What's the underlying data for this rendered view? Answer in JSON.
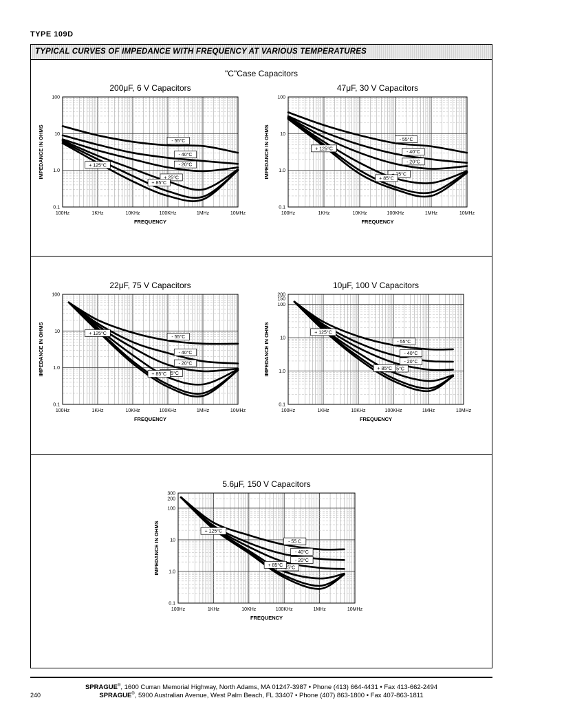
{
  "header": {
    "type_label": "TYPE 109D"
  },
  "banner": {
    "title": "TYPICAL CURVES OF IMPEDANCE WITH FREQUENCY AT VARIOUS TEMPERATURES"
  },
  "case_title": "\"C\"Case Capacitors",
  "footer": {
    "line1_brand": "SPRAGUE",
    "line1_mark": "®",
    "line1_text": ", 1600 Curran Memorial Highway, North Adams, MA 01247-3987  •  Phone (413) 664-4431  •  Fax 413-662-2494",
    "line2_brand": "SPRAGUE",
    "line2_mark": "®",
    "line2_text": ", 5900 Australian Avenue, West Palm Beach, FL 33407  •  Phone (407) 863-1800  •  Fax 407-863-1811",
    "page_number": "240"
  },
  "chart_data": [
    {
      "type": "line",
      "title": "200μF, 6 V Capacitors",
      "xlabel": "FREQUENCY",
      "ylabel": "IMPEDANCE IN OHMS",
      "x_scale": "log",
      "y_scale": "log",
      "xlim": [
        100,
        10000000
      ],
      "ylim": [
        0.1,
        100
      ],
      "x_ticks": [
        "100Hz",
        "1KHz",
        "10KHz",
        "100KHz",
        "1MHz",
        "10MHz"
      ],
      "y_ticks": [
        "100",
        "10",
        "1.0",
        "0.1"
      ],
      "series": [
        {
          "name": "- 55°C",
          "x": [
            100,
            1000,
            10000,
            100000,
            1000000,
            10000000
          ],
          "y": [
            16,
            9,
            6,
            4.8,
            4.6,
            3
          ]
        },
        {
          "name": "- 40°C",
          "x": [
            100,
            1000,
            10000,
            100000,
            1000000,
            10000000
          ],
          "y": [
            9,
            5,
            3,
            2.2,
            1.8,
            1.5
          ]
        },
        {
          "name": "- 20°C",
          "x": [
            100,
            1000,
            10000,
            100000,
            1000000,
            10000000
          ],
          "y": [
            7,
            3.5,
            2,
            1.2,
            0.95,
            1.2
          ]
        },
        {
          "name": "+ 25°C",
          "x": [
            100,
            1000,
            10000,
            100000,
            1000000,
            10000000
          ],
          "y": [
            6.5,
            2.5,
            1.1,
            0.5,
            0.3,
            1.05
          ]
        },
        {
          "name": "+ 85°C",
          "x": [
            100,
            1000,
            10000,
            100000,
            1000000,
            10000000
          ],
          "y": [
            6,
            2,
            0.7,
            0.27,
            0.19,
            1.0
          ]
        },
        {
          "name": "+ 125°C",
          "x": [
            100,
            1000,
            10000,
            100000,
            1000000,
            10000000
          ],
          "y": [
            5.5,
            1.6,
            0.5,
            0.2,
            0.16,
            1.0
          ]
        }
      ]
    },
    {
      "type": "line",
      "title": "47μF, 30 V Capacitors",
      "xlabel": "FREQUENCY",
      "ylabel": "IMPEDANCE IN OHMS",
      "x_scale": "log",
      "y_scale": "log",
      "xlim": [
        100,
        10000000
      ],
      "ylim": [
        0.1,
        100
      ],
      "x_ticks": [
        "100Hz",
        "1KHz",
        "10KHz",
        "100KHz",
        "1MHz",
        "10MHz"
      ],
      "y_ticks": [
        "100",
        "10",
        "1.0",
        "0.1"
      ],
      "series": [
        {
          "name": "- 55°C",
          "x": [
            100,
            1000,
            10000,
            100000,
            1000000,
            10000000
          ],
          "y": [
            38,
            17,
            9,
            5.5,
            4.5,
            3
          ]
        },
        {
          "name": "- 40°C",
          "x": [
            100,
            1000,
            10000,
            100000,
            1000000,
            10000000
          ],
          "y": [
            30,
            11,
            5,
            2.8,
            2.0,
            1.6
          ]
        },
        {
          "name": "- 20°C",
          "x": [
            100,
            1000,
            10000,
            100000,
            1000000,
            10000000
          ],
          "y": [
            28,
            8,
            3,
            1.5,
            1.1,
            1.3
          ]
        },
        {
          "name": "+ 25°C",
          "x": [
            100,
            1000,
            10000,
            100000,
            1000000,
            10000000
          ],
          "y": [
            27,
            6,
            1.6,
            0.6,
            0.45,
            0.95
          ]
        },
        {
          "name": "+ 85°C",
          "x": [
            100,
            1000,
            10000,
            100000,
            1000000,
            10000000
          ],
          "y": [
            26,
            5,
            1.0,
            0.35,
            0.25,
            0.9
          ]
        },
        {
          "name": "+ 125°C",
          "x": [
            100,
            1000,
            10000,
            100000,
            1000000,
            10000000
          ],
          "y": [
            25,
            4.5,
            0.8,
            0.3,
            0.2,
            0.85
          ]
        }
      ]
    },
    {
      "type": "line",
      "title": "22μF, 75 V Capacitors",
      "xlabel": "FREQUENCY",
      "ylabel": "IMPEDANCE IN OHMS",
      "x_scale": "log",
      "y_scale": "log",
      "xlim": [
        100,
        10000000
      ],
      "ylim": [
        0.1,
        100
      ],
      "x_ticks": [
        "100Hz",
        "1KHz",
        "10KHz",
        "100KHz",
        "1MHz",
        "10MHz"
      ],
      "y_ticks": [
        "100",
        "10",
        "1.0",
        "0.1"
      ],
      "series": [
        {
          "name": "- 55°C",
          "x": [
            150,
            1000,
            10000,
            100000,
            1000000,
            10000000
          ],
          "y": [
            60,
            20,
            9,
            5.5,
            4.5,
            4.5
          ]
        },
        {
          "name": "- 40°C",
          "x": [
            150,
            1000,
            10000,
            100000,
            1000000,
            10000000
          ],
          "y": [
            60,
            16,
            5,
            2.5,
            1.5,
            1.3
          ]
        },
        {
          "name": "- 20°C",
          "x": [
            150,
            1000,
            10000,
            100000,
            1000000,
            10000000
          ],
          "y": [
            60,
            14,
            3.5,
            1.2,
            0.8,
            0.95
          ]
        },
        {
          "name": "+ 25°C",
          "x": [
            150,
            1000,
            10000,
            100000,
            1000000,
            10000000
          ],
          "y": [
            60,
            12,
            2.2,
            0.55,
            0.35,
            0.9
          ]
        },
        {
          "name": "+ 85°C",
          "x": [
            150,
            1000,
            10000,
            100000,
            1000000,
            10000000
          ],
          "y": [
            60,
            11,
            1.5,
            0.35,
            0.2,
            0.85
          ]
        },
        {
          "name": "+ 125°C",
          "x": [
            150,
            1000,
            10000,
            100000,
            1000000,
            10000000
          ],
          "y": [
            60,
            10,
            1.3,
            0.3,
            0.17,
            0.85
          ]
        }
      ]
    },
    {
      "type": "line",
      "title": "10μF, 100 V Capacitors",
      "xlabel": "FREQUENCY",
      "ylabel": "IMPEDANCE IN OHMS",
      "x_scale": "log",
      "y_scale": "log",
      "xlim": [
        100,
        10000000
      ],
      "ylim": [
        0.1,
        200
      ],
      "x_ticks": [
        "100Hz",
        "1KHz",
        "10KHz",
        "100KHz",
        "1MHz",
        "10MHz"
      ],
      "y_ticks": [
        "200",
        "150",
        "100",
        "10",
        "1.0",
        "0.1"
      ],
      "series": [
        {
          "name": "- 55°C",
          "x": [
            150,
            1000,
            10000,
            100000,
            1000000,
            5000000
          ],
          "y": [
            120,
            30,
            11,
            6,
            4.5,
            4.5
          ]
        },
        {
          "name": "- 40°C",
          "x": [
            150,
            1000,
            10000,
            100000,
            1000000,
            5000000
          ],
          "y": [
            120,
            25,
            7,
            3,
            2,
            1.9
          ]
        },
        {
          "name": "- 20°C",
          "x": [
            150,
            1000,
            10000,
            100000,
            1000000,
            5000000
          ],
          "y": [
            120,
            22,
            5,
            1.8,
            1.1,
            1.1
          ]
        },
        {
          "name": "+ 25°C",
          "x": [
            150,
            1000,
            10000,
            100000,
            1000000,
            5000000
          ],
          "y": [
            120,
            19,
            3.5,
            0.9,
            0.5,
            0.75
          ]
        },
        {
          "name": "+ 85°C",
          "x": [
            150,
            1000,
            10000,
            100000,
            1000000,
            5000000
          ],
          "y": [
            120,
            18,
            2.7,
            0.6,
            0.3,
            0.7
          ]
        },
        {
          "name": "+ 125°C",
          "x": [
            150,
            1000,
            10000,
            100000,
            1000000,
            5000000
          ],
          "y": [
            120,
            17,
            2.3,
            0.5,
            0.25,
            0.7
          ]
        }
      ]
    },
    {
      "type": "line",
      "title": "5.6μF, 150 V Capacitors",
      "xlabel": "FREQUENCY",
      "ylabel": "IMPEDANCE IN OHMS",
      "x_scale": "log",
      "y_scale": "log",
      "xlim": [
        100,
        10000000
      ],
      "ylim": [
        0.1,
        300
      ],
      "x_ticks": [
        "100Hz",
        "1KHz",
        "10KHz",
        "100KHz",
        "1MHz",
        "10MHz"
      ],
      "y_ticks": [
        "300",
        "200",
        "100",
        "10",
        "1.0",
        "0.1"
      ],
      "series": [
        {
          "name": "- 55 C",
          "x": [
            120,
            1000,
            10000,
            100000,
            1000000,
            5000000
          ],
          "y": [
            220,
            35,
            14,
            7,
            5,
            5
          ]
        },
        {
          "name": "- 40°C",
          "x": [
            120,
            1000,
            10000,
            100000,
            1000000,
            5000000
          ],
          "y": [
            220,
            28,
            8,
            3.5,
            2.5,
            2.3
          ]
        },
        {
          "name": "- 20°C",
          "x": [
            120,
            1000,
            10000,
            100000,
            1000000,
            5000000
          ],
          "y": [
            220,
            26,
            6,
            2,
            1.3,
            1.2
          ]
        },
        {
          "name": "+ 25°C",
          "x": [
            120,
            1000,
            10000,
            100000,
            1000000,
            5000000
          ],
          "y": [
            220,
            24,
            4.5,
            1,
            0.6,
            0.85
          ]
        },
        {
          "name": "+ 85°C",
          "x": [
            120,
            1000,
            10000,
            100000,
            1000000,
            5000000
          ],
          "y": [
            220,
            23,
            4,
            0.75,
            0.35,
            0.8
          ]
        },
        {
          "name": "+ 125°C",
          "x": [
            120,
            1000,
            10000,
            100000,
            1000000,
            5000000
          ],
          "y": [
            220,
            22,
            3.8,
            0.65,
            0.28,
            0.8
          ]
        }
      ]
    }
  ]
}
